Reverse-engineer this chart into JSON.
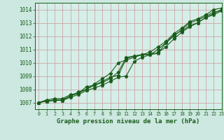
{
  "title": "Graphe pression niveau de la mer (hPa)",
  "bg_color": "#cce8e0",
  "plot_bg_color": "#d5eee8",
  "grid_color": "#cc9999",
  "line_color": "#1a5c1a",
  "marker_color": "#1a5c1a",
  "xlim": [
    -0.5,
    23
  ],
  "ylim": [
    1006.5,
    1014.5
  ],
  "yticks": [
    1007,
    1008,
    1009,
    1010,
    1011,
    1012,
    1013,
    1014
  ],
  "xticks": [
    0,
    1,
    2,
    3,
    4,
    5,
    6,
    7,
    8,
    9,
    10,
    11,
    12,
    13,
    14,
    15,
    16,
    17,
    18,
    19,
    20,
    21,
    22,
    23
  ],
  "series": [
    [
      1007.0,
      1007.2,
      1007.3,
      1007.3,
      1007.6,
      1007.7,
      1008.2,
      1008.3,
      1008.5,
      1008.8,
      1009.3,
      1010.4,
      1010.5,
      1010.6,
      1010.6,
      1011.0,
      1011.5,
      1012.0,
      1012.5,
      1013.0,
      1013.2,
      1013.5,
      1013.8,
      1013.9
    ],
    [
      1007.0,
      1007.1,
      1007.2,
      1007.2,
      1007.5,
      1007.8,
      1008.0,
      1008.4,
      1008.8,
      1009.2,
      1010.0,
      1010.2,
      1010.4,
      1010.6,
      1010.8,
      1011.2,
      1011.6,
      1012.2,
      1012.6,
      1013.1,
      1013.3,
      1013.6,
      1014.0,
      1014.1
    ],
    [
      1007.0,
      1007.1,
      1007.2,
      1007.15,
      1007.4,
      1007.6,
      1007.9,
      1008.1,
      1008.3,
      1008.6,
      1008.9,
      1009.0,
      1010.1,
      1010.4,
      1010.6,
      1010.7,
      1011.5,
      1012.1,
      1012.4,
      1012.8,
      1013.0,
      1013.4,
      1013.7,
      1014.0
    ],
    [
      1007.0,
      1007.1,
      1007.15,
      1007.2,
      1007.5,
      1007.7,
      1008.0,
      1008.3,
      1008.6,
      1008.9,
      1009.05,
      1010.3,
      1010.5,
      1010.6,
      1010.65,
      1010.75,
      1011.2,
      1011.8,
      1012.3,
      1012.7,
      1013.0,
      1013.4,
      1013.6,
      1013.9
    ]
  ],
  "title_fontsize": 6.5,
  "tick_fontsize": 5.5,
  "xtick_fontsize": 4.8
}
